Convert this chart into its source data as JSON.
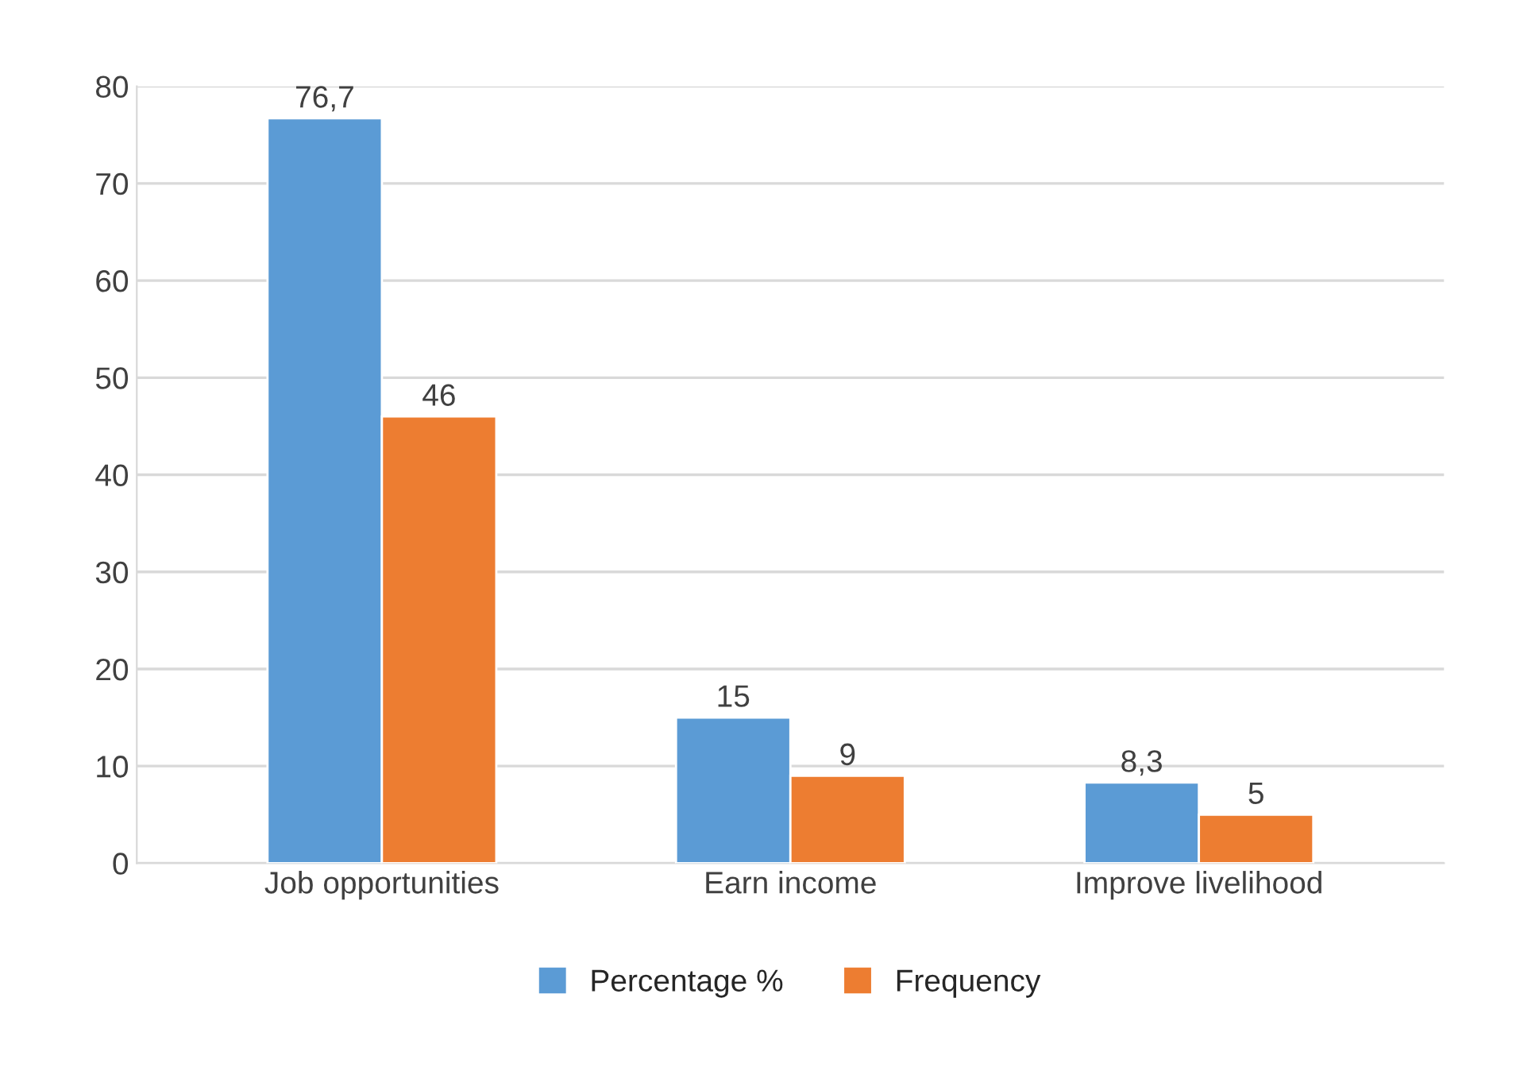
{
  "chart_data": {
    "type": "bar",
    "categories": [
      "Job opportunities",
      "Earn income",
      "Improve livelihood"
    ],
    "series": [
      {
        "name": "Percentage %",
        "color": "#5b9bd5",
        "values": [
          76.7,
          15,
          8.3
        ],
        "value_labels": [
          "76,7",
          "15",
          "8,3"
        ]
      },
      {
        "name": "Frequency",
        "color": "#ed7d31",
        "values": [
          46,
          9,
          5
        ],
        "value_labels": [
          "46",
          "9",
          "5"
        ]
      }
    ],
    "ylim": [
      0,
      80
    ],
    "yticks": [
      0,
      10,
      20,
      30,
      40,
      50,
      60,
      70,
      80
    ],
    "grid": "y",
    "legend": "bottom"
  }
}
